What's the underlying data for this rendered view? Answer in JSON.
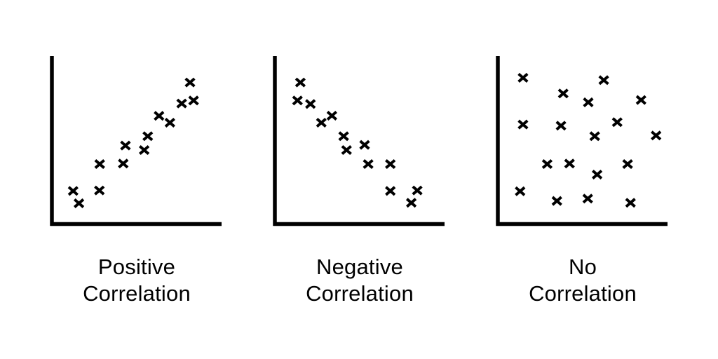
{
  "figure": {
    "background_color": "#ffffff",
    "ink_color": "#000000",
    "marker_glyph": "x"
  },
  "chart_data": [
    {
      "type": "scatter",
      "title": "Positive Correlation",
      "label_lines": [
        "Positive",
        "Correlation"
      ],
      "marker": "x",
      "xlabel": "",
      "ylabel": "",
      "axis_style": "L-shaped axes, no ticks, no tick labels, no grid",
      "xlim": [
        0,
        100
      ],
      "ylim": [
        0,
        100
      ],
      "points": [
        [
          13.3,
          19.2
        ],
        [
          16.7,
          11.8
        ],
        [
          28.7,
          19.5
        ],
        [
          28.9,
          35.3
        ],
        [
          42.7,
          35.6
        ],
        [
          44.0,
          46.4
        ],
        [
          55.0,
          43.7
        ],
        [
          57.1,
          52.0
        ],
        [
          63.7,
          64.2
        ],
        [
          70.1,
          60.1
        ],
        [
          77.0,
          71.6
        ],
        [
          81.9,
          84.2
        ],
        [
          84.0,
          73.4
        ]
      ]
    },
    {
      "type": "scatter",
      "title": "Negative Correlation",
      "label_lines": [
        "Negative",
        "Correlation"
      ],
      "marker": "x",
      "xlabel": "",
      "ylabel": "",
      "axis_style": "L-shaped axes, no ticks, no tick labels, no grid",
      "xlim": [
        0,
        100
      ],
      "ylim": [
        0,
        100
      ],
      "points": [
        [
          15.8,
          84.2
        ],
        [
          14.1,
          73.4
        ],
        [
          21.7,
          71.3
        ],
        [
          28.1,
          60.1
        ],
        [
          34.3,
          64.3
        ],
        [
          41.2,
          52.0
        ],
        [
          42.9,
          43.7
        ],
        [
          53.5,
          46.8
        ],
        [
          55.6,
          35.3
        ],
        [
          68.6,
          35.3
        ],
        [
          68.6,
          19.2
        ],
        [
          80.9,
          12.1
        ],
        [
          84.4,
          19.5
        ]
      ]
    },
    {
      "type": "scatter",
      "title": "No Correlation",
      "label_lines": [
        "No",
        "Correlation"
      ],
      "marker": "x",
      "xlabel": "",
      "ylabel": "",
      "axis_style": "L-shaped axes, no ticks, no tick labels, no grid",
      "xlim": [
        0,
        100
      ],
      "ylim": [
        0,
        100
      ],
      "points": [
        [
          15.6,
          87.0
        ],
        [
          63.0,
          85.6
        ],
        [
          39.2,
          77.6
        ],
        [
          53.9,
          72.3
        ],
        [
          84.9,
          73.7
        ],
        [
          15.6,
          59.0
        ],
        [
          37.9,
          58.3
        ],
        [
          70.9,
          60.4
        ],
        [
          57.7,
          52.0
        ],
        [
          93.7,
          52.4
        ],
        [
          29.8,
          35.3
        ],
        [
          42.9,
          35.6
        ],
        [
          77.0,
          35.3
        ],
        [
          59.1,
          29.0
        ],
        [
          13.9,
          19.0
        ],
        [
          35.5,
          13.2
        ],
        [
          53.6,
          14.6
        ],
        [
          78.7,
          12.1
        ]
      ]
    }
  ]
}
